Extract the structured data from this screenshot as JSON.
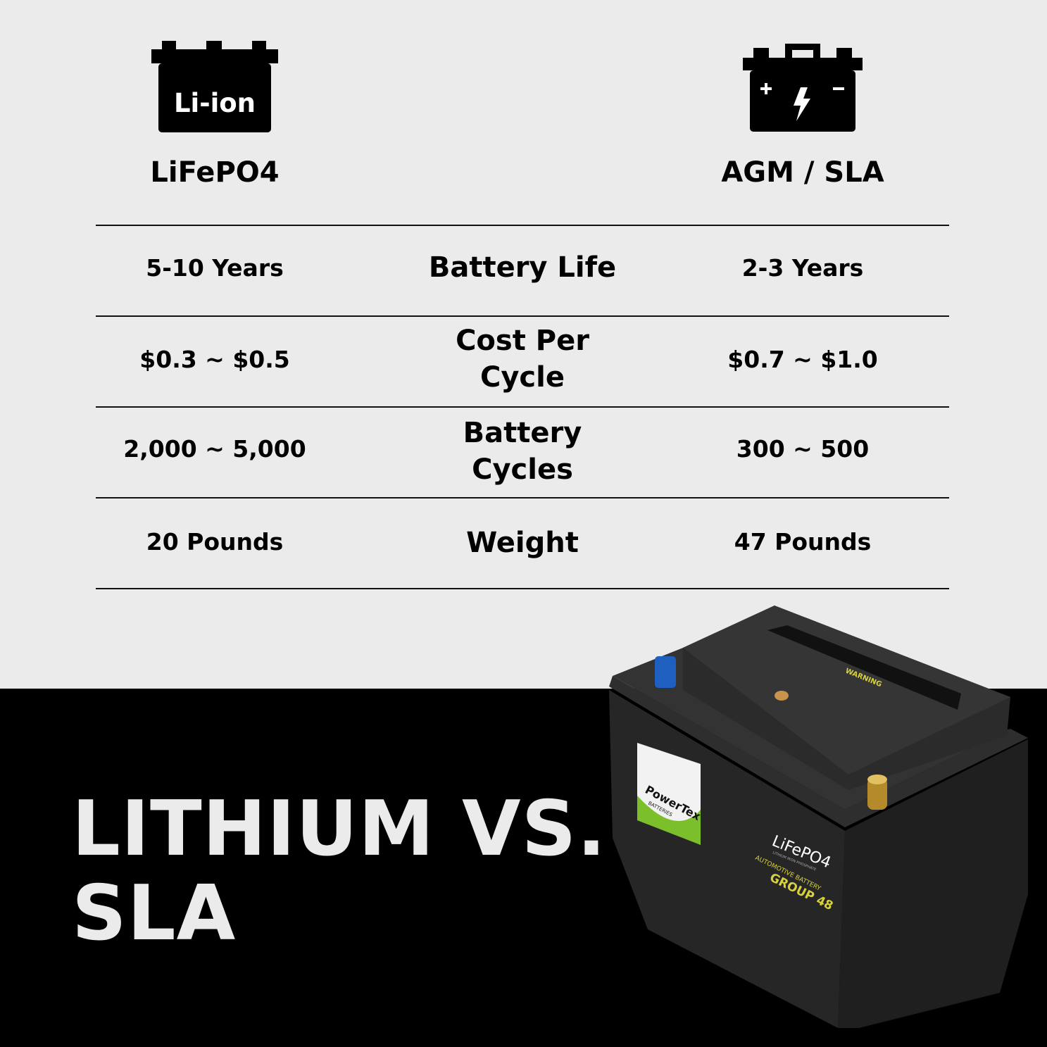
{
  "columns": {
    "left": {
      "icon": "li-ion-battery-icon",
      "icon_text": "Li-ion",
      "heading": "LiFePO4"
    },
    "right": {
      "icon": "car-battery-icon",
      "heading": "AGM / SLA"
    }
  },
  "rows": [
    {
      "left": "5-10 Years",
      "label": "Battery Life",
      "right": "2-3 Years"
    },
    {
      "left": "$0.3 ~ $0.5",
      "label": "Cost Per Cycle",
      "right": "$0.7 ~ $1.0"
    },
    {
      "left": "2,000 ~ 5,000",
      "label": "Battery Cycles",
      "right": "300 ~ 500"
    },
    {
      "left": "20 Pounds",
      "label": "Weight",
      "right": "47 Pounds"
    }
  ],
  "title": {
    "line1": "LITHIUM VS.",
    "line2": "SLA"
  },
  "product_image": {
    "brand": "PowerTex",
    "brand_sub": "BATTERIES",
    "label_title": "LiFePO4",
    "label_sub": "LITHIUM IRON PHOSPHATE",
    "label_type": "AUTOMOTIVE BATTERY",
    "label_group": "GROUP 48",
    "warning": "WARNING"
  },
  "colors": {
    "background_top": "#ebebeb",
    "background_bottom": "#000000",
    "accent_yellow": "#d8d23a",
    "accent_green": "#7bbf2a"
  }
}
